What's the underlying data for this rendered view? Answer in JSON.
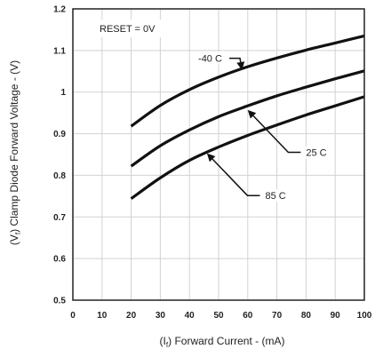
{
  "chart_data": {
    "type": "line",
    "title": "",
    "xlabel_prefix": "(I",
    "xlabel_sub": "f",
    "xlabel_suffix": ")  Forward Current - (mA)",
    "ylabel_prefix": "(V",
    "ylabel_sub": "f",
    "ylabel_suffix": ")  Clamp Diode Forward Voltage - (V)",
    "xlim": [
      0,
      100
    ],
    "ylim": [
      0.5,
      1.2
    ],
    "x_ticks": [
      "0",
      "10",
      "20",
      "30",
      "40",
      "50",
      "60",
      "70",
      "80",
      "90",
      "100"
    ],
    "y_ticks": [
      "0.5",
      "0.6",
      "0.7",
      "0.8",
      "0.9",
      "1",
      "1.1",
      "1.2"
    ],
    "grid": true,
    "legend": "none",
    "condition_label": "RESET = 0V",
    "series": [
      {
        "name": "-40 C",
        "x": [
          20,
          30,
          40,
          50,
          60,
          70,
          80,
          90,
          100
        ],
        "y": [
          0.918,
          0.968,
          1.006,
          1.036,
          1.061,
          1.082,
          1.101,
          1.118,
          1.135
        ]
      },
      {
        "name": "25 C",
        "x": [
          20,
          30,
          40,
          50,
          60,
          70,
          80,
          90,
          100
        ],
        "y": [
          0.822,
          0.871,
          0.909,
          0.941,
          0.967,
          0.991,
          1.012,
          1.032,
          1.051
        ]
      },
      {
        "name": "85 C",
        "x": [
          20,
          30,
          40,
          50,
          60,
          70,
          80,
          90,
          100
        ],
        "y": [
          0.744,
          0.794,
          0.836,
          0.868,
          0.896,
          0.921,
          0.945,
          0.967,
          0.989
        ]
      }
    ],
    "annotations": [
      {
        "series": "-40 C",
        "text": "-40 C",
        "label_x": 43,
        "label_y": 1.075,
        "arrow_to": [
          58,
          1.053
        ]
      },
      {
        "series": "25 C",
        "text": "25 C",
        "label_x": 80,
        "label_y": 0.849,
        "arrow_to": [
          60,
          0.957
        ]
      },
      {
        "series": "85 C",
        "text": "85 C",
        "label_x": 66,
        "label_y": 0.745,
        "arrow_to": [
          46,
          0.853
        ]
      }
    ],
    "colors": {
      "line": "#111111",
      "grid": "#d2d2d2",
      "frame": "#222222",
      "text": "#222222"
    }
  }
}
